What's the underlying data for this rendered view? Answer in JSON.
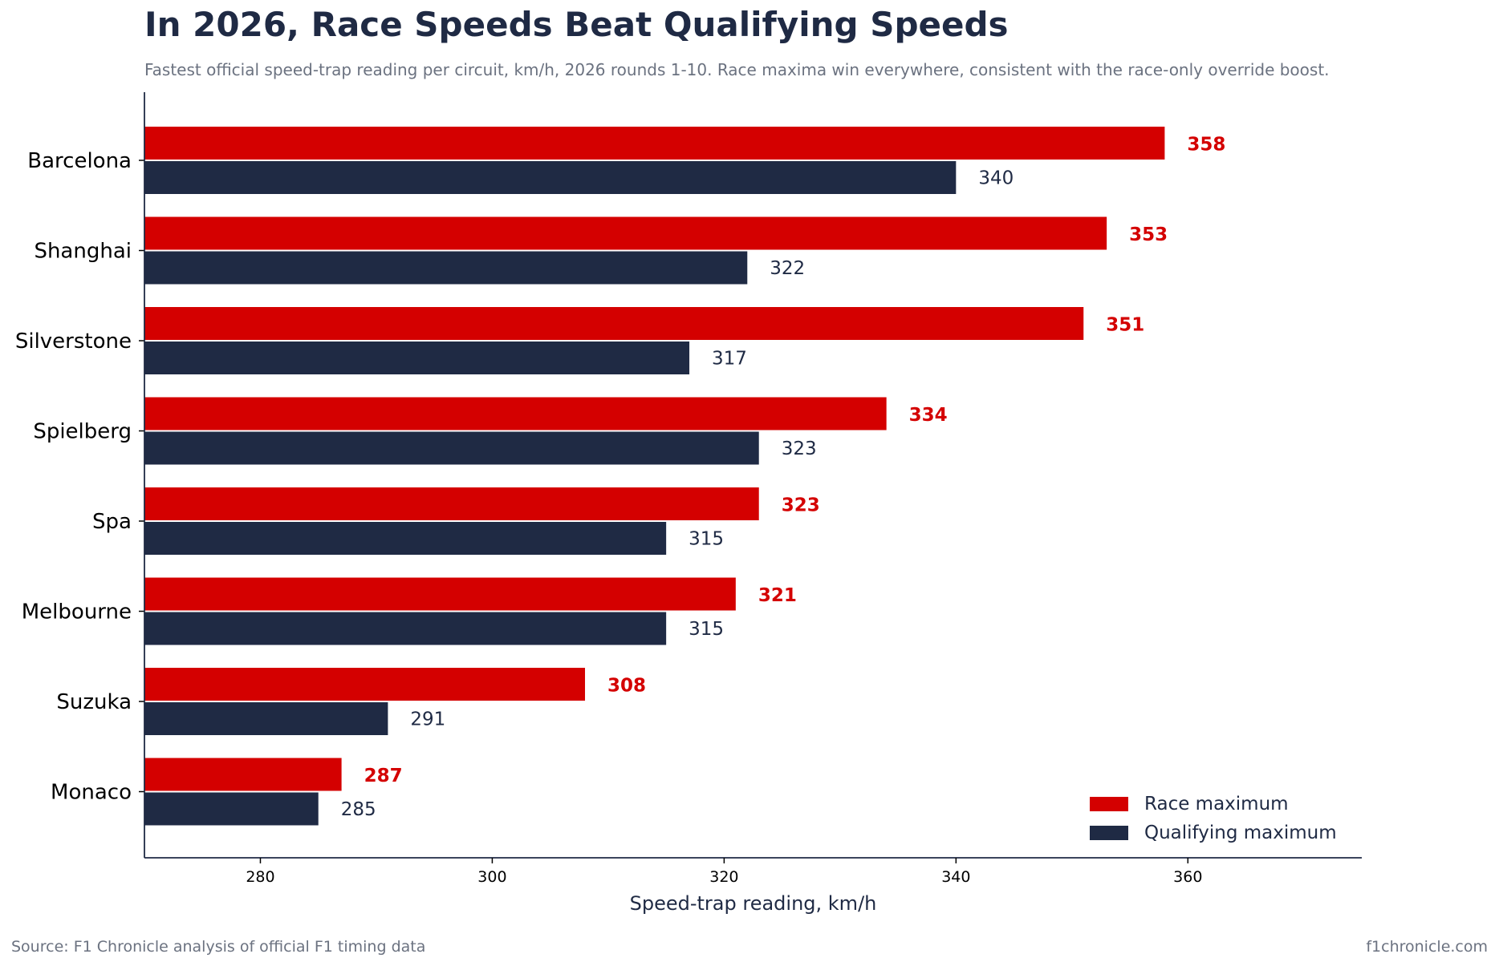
{
  "header": {
    "title": "In 2026, Race Speeds Beat Qualifying Speeds",
    "subtitle": "Fastest official speed-trap reading per circuit, km/h, 2026 rounds 1-10. Race maxima win everywhere, consistent with the race-only override boost."
  },
  "footer": {
    "source": "Source: F1 Chronicle analysis of official F1 timing data",
    "site": "f1chronicle.com"
  },
  "colors": {
    "race": "#d40000",
    "qualifying": "#1f2a44"
  },
  "chart_data": {
    "type": "bar",
    "orientation": "horizontal",
    "categories": [
      "Barcelona",
      "Shanghai",
      "Silverstone",
      "Spielberg",
      "Spa",
      "Melbourne",
      "Suzuka",
      "Monaco"
    ],
    "series": [
      {
        "name": "Race maximum",
        "values": [
          358,
          353,
          351,
          334,
          323,
          321,
          308,
          287
        ]
      },
      {
        "name": "Qualifying maximum",
        "values": [
          340,
          322,
          317,
          323,
          315,
          315,
          291,
          285
        ]
      }
    ],
    "xlabel": "Speed-trap reading, km/h",
    "xlim": [
      270,
      375
    ],
    "xticks": [
      280,
      300,
      320,
      340,
      360
    ],
    "grid": false,
    "legend_position": "bottom-right"
  }
}
